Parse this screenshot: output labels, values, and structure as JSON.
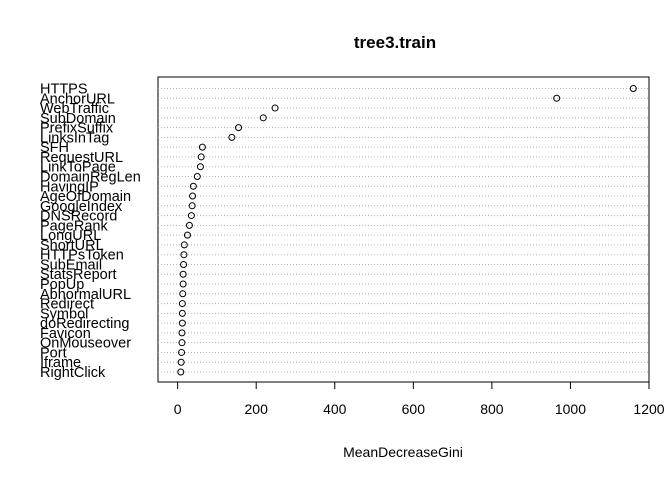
{
  "chart_data": {
    "type": "scatter",
    "title": "tree3.train",
    "xlabel": "MeanDecreaseGini",
    "ylabel": "",
    "xlim": [
      -50,
      1200
    ],
    "xticks": [
      0,
      200,
      400,
      600,
      800,
      1000,
      1200
    ],
    "grid": "dotted horizontal guide lines",
    "categories": [
      "HTTPS",
      "AnchorURL",
      "WebTraffic",
      "SubDomain",
      "PrefixSuffix",
      "LinksInTag",
      "SFH",
      "RequestURL",
      "LinkToPage",
      "DomainRegLen",
      "HavingIP",
      "AgeOfDomain",
      "GoogleIndex",
      "DNSRecord",
      "PageRank",
      "LongURL",
      "ShortURL",
      "HTTPsToken",
      "SubEmail",
      "StatsReport",
      "PopUp",
      "AbnormalURL",
      "Redirect",
      "Symbol",
      "doRedirecting",
      "Favicon",
      "OnMouseover",
      "Port",
      "Iframe",
      "RightClick"
    ],
    "values": [
      1160,
      965,
      248,
      218,
      155,
      138,
      63,
      60,
      58,
      50,
      40,
      38,
      37,
      35,
      30,
      25,
      17,
      16,
      15,
      14,
      14,
      13,
      12,
      12,
      12,
      11,
      11,
      10,
      9,
      8
    ]
  }
}
